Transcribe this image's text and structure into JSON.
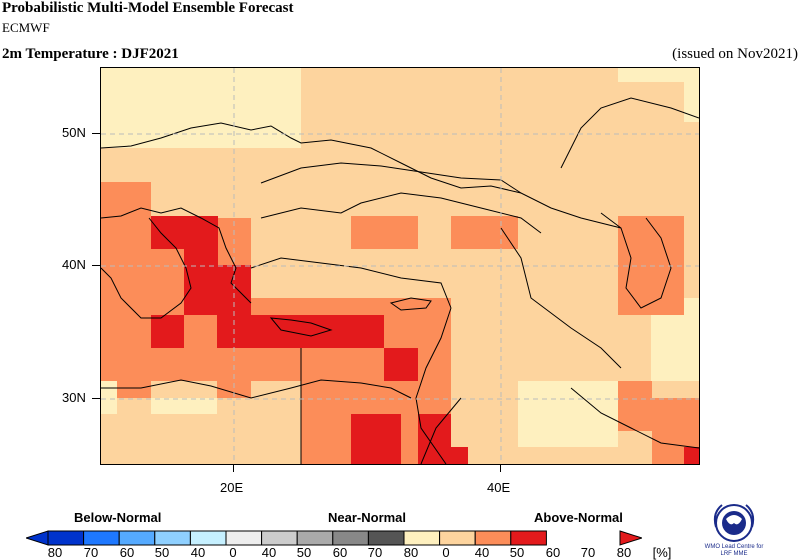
{
  "header": {
    "title": "Probabilistic Multi-Model Ensemble Forecast",
    "centre": "ECMWF",
    "variable": "2m Temperature : DJF2021",
    "issued": "(issued on Nov2021)"
  },
  "map": {
    "lat_labels": [
      "50N",
      "40N",
      "30N"
    ],
    "lon_labels": [
      "20E",
      "40E"
    ],
    "colors": {
      "background": "#fdd49e",
      "cat_40_50": "#fef0bf",
      "cat_50_60": "#fdd49e",
      "cat_60_70": "#fc8d59",
      "cat_70_80": "#e31a1c"
    }
  },
  "legend": {
    "categories": [
      "Below-Normal",
      "Near-Normal",
      "Above-Normal"
    ],
    "below_labels": [
      "80",
      "70",
      "60",
      "50",
      "40"
    ],
    "near_labels": [
      "0",
      "40",
      "50",
      "60",
      "70",
      "80"
    ],
    "above_labels": [
      "0",
      "40",
      "50",
      "60",
      "70",
      "80"
    ],
    "unit": "[%]",
    "below_colors": [
      "#0033cc",
      "#1e78ff",
      "#55aaff",
      "#8fd0ff",
      "#c6f0ff"
    ],
    "near_colors": [
      "#eeeeee",
      "#cccccc",
      "#aaaaaa",
      "#888888",
      "#555555"
    ],
    "above_colors": [
      "#fef0bf",
      "#fdd49e",
      "#fc8d59",
      "#e31a1c"
    ]
  },
  "logo": {
    "caption_line1": "WMO Lead Centre for",
    "caption_line2": "LRF MME"
  }
}
